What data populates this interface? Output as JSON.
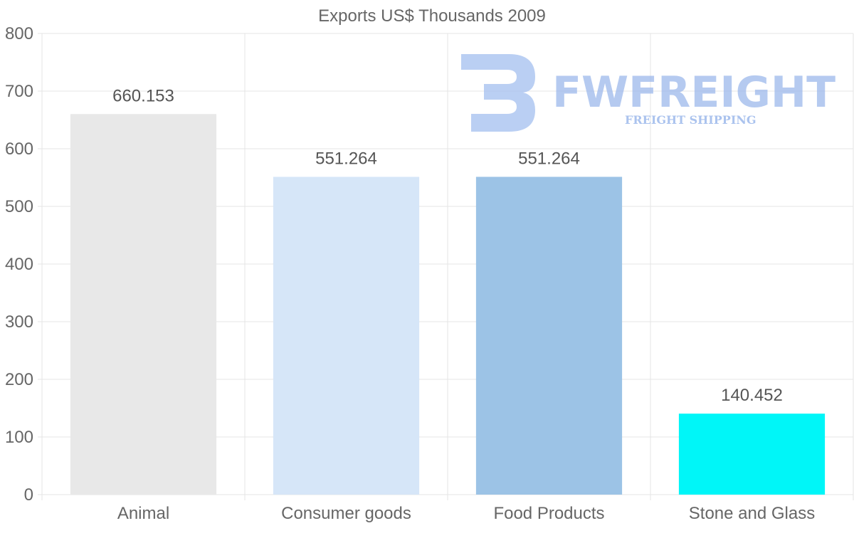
{
  "chart_data": {
    "type": "bar",
    "title": "Exports US$ Thousands 2009",
    "categories": [
      "Animal",
      "Consumer goods",
      "Food Products",
      "Stone and Glass"
    ],
    "values": [
      660.153,
      551.264,
      551.264,
      140.452
    ],
    "data_labels": [
      "660.153",
      "551.264",
      "551.264",
      "140.452"
    ],
    "colors": [
      "#e8e8e8",
      "#d6e6f8",
      "#9cc3e6",
      "#00f6f8"
    ],
    "ylim": [
      0,
      800
    ],
    "yticks": [
      0,
      100,
      200,
      300,
      400,
      500,
      600,
      700,
      800
    ],
    "ytick_labels": [
      "0",
      "100",
      "200",
      "300",
      "400",
      "500",
      "600",
      "700",
      "800"
    ],
    "xlabel": "",
    "ylabel": "",
    "grid": true,
    "legend": "none"
  },
  "watermark": {
    "brand": "FWFREIGHT",
    "tagline": "FREIGHT SHIPPING",
    "color": "#9db9ec"
  }
}
